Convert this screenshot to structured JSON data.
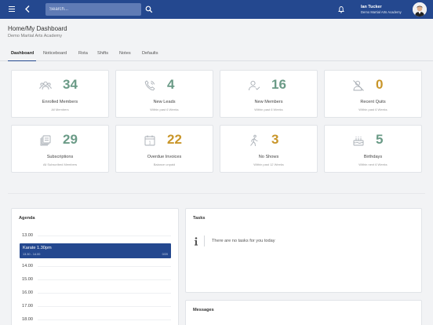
{
  "header": {
    "search_placeholder": "Search...",
    "user_name": "Ian Tucker",
    "user_org": "Demo Martial Arts Academy"
  },
  "page": {
    "title": "Home/My Dashboard",
    "subtitle": "Demo Martial Arts Academy"
  },
  "tabs": [
    {
      "label": "Dashboard",
      "active": true
    },
    {
      "label": "Noticeboard"
    },
    {
      "label": "Rota"
    },
    {
      "label": "Shifts"
    },
    {
      "label": "Notes"
    },
    {
      "label": "Defaults"
    }
  ],
  "stats": [
    {
      "value": "34",
      "label": "Enrolled Members",
      "sub": "All Members",
      "icon": "members-icon",
      "color": "#6b9b87"
    },
    {
      "value": "4",
      "label": "New Leads",
      "sub": "Within past 6 Weeks",
      "icon": "phone-icon",
      "color": "#6b9b87"
    },
    {
      "value": "16",
      "label": "New Members",
      "sub": "Within past 6 Weeks",
      "icon": "new-member-icon",
      "color": "#6b9b87"
    },
    {
      "value": "0",
      "label": "Recent Quits",
      "sub": "Within past 6 Weeks",
      "icon": "quit-icon",
      "color": "#c9962a"
    },
    {
      "value": "29",
      "label": "Subscriptions",
      "sub": "All Subscribed Members",
      "icon": "subscriptions-icon",
      "color": "#6b9b87"
    },
    {
      "value": "22",
      "label": "Overdue Invoices",
      "sub": "Balance unpaid",
      "icon": "calendar-icon",
      "color": "#c9962a"
    },
    {
      "value": "3",
      "label": "No Shows",
      "sub": "Within past 12 Weeks",
      "icon": "walking-icon",
      "color": "#c9962a"
    },
    {
      "value": "5",
      "label": "Birthdays",
      "sub": "Within next 6 Weeks",
      "icon": "cake-icon",
      "color": "#6b9b87"
    }
  ],
  "agenda": {
    "title": "Agenda",
    "hours": [
      "13.00",
      "14.00",
      "15.00",
      "16.00",
      "17.00",
      "18.00"
    ],
    "event": {
      "title": "Karate 1.30pm",
      "time": "13.30 - 14.00",
      "count": "0/20"
    }
  },
  "tasks": {
    "title": "Tasks",
    "empty_text": "There are no tasks for you today"
  },
  "messages": {
    "title": "Messages"
  },
  "colors": {
    "primary": "#24488f",
    "accent_green": "#6b9b87",
    "accent_gold": "#c9962a"
  }
}
